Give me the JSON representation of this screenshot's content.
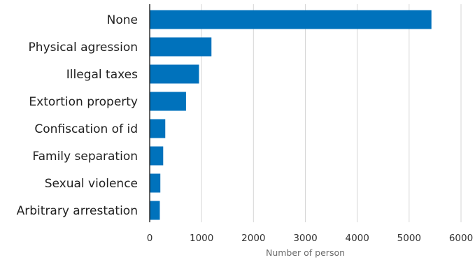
{
  "chart_data": {
    "type": "bar",
    "orientation": "horizontal",
    "categories": [
      "None",
      "Physical agression",
      "Illegal taxes",
      "Extortion property",
      "Confiscation of id",
      "Family separation",
      "Sexual violence",
      "Arbitrary arrestation"
    ],
    "values": [
      5430,
      1190,
      950,
      700,
      300,
      260,
      205,
      195
    ],
    "xlabel": "Number of person",
    "ylabel": "",
    "title": "",
    "xlim": [
      0,
      6000
    ],
    "xticks": [
      0,
      1000,
      2000,
      3000,
      4000,
      5000,
      6000
    ],
    "xtick_labels": [
      "0",
      "1000",
      "2000",
      "3000",
      "4000",
      "5000",
      "6000"
    ],
    "grid": "vertical",
    "bar_color": "#0072bc",
    "legend": "none"
  }
}
